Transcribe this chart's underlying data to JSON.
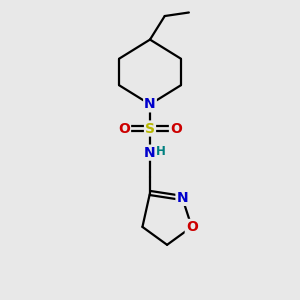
{
  "bg_color": "#e8e8e8",
  "bond_color": "#000000",
  "bond_width": 1.6,
  "atom_colors": {
    "N": "#0000cc",
    "O": "#cc0000",
    "S": "#b8b800",
    "H": "#008080",
    "C": "#000000"
  },
  "font_size_atom": 10,
  "font_size_H": 8.5,
  "xlim": [
    0,
    10
  ],
  "ylim": [
    0,
    10
  ]
}
